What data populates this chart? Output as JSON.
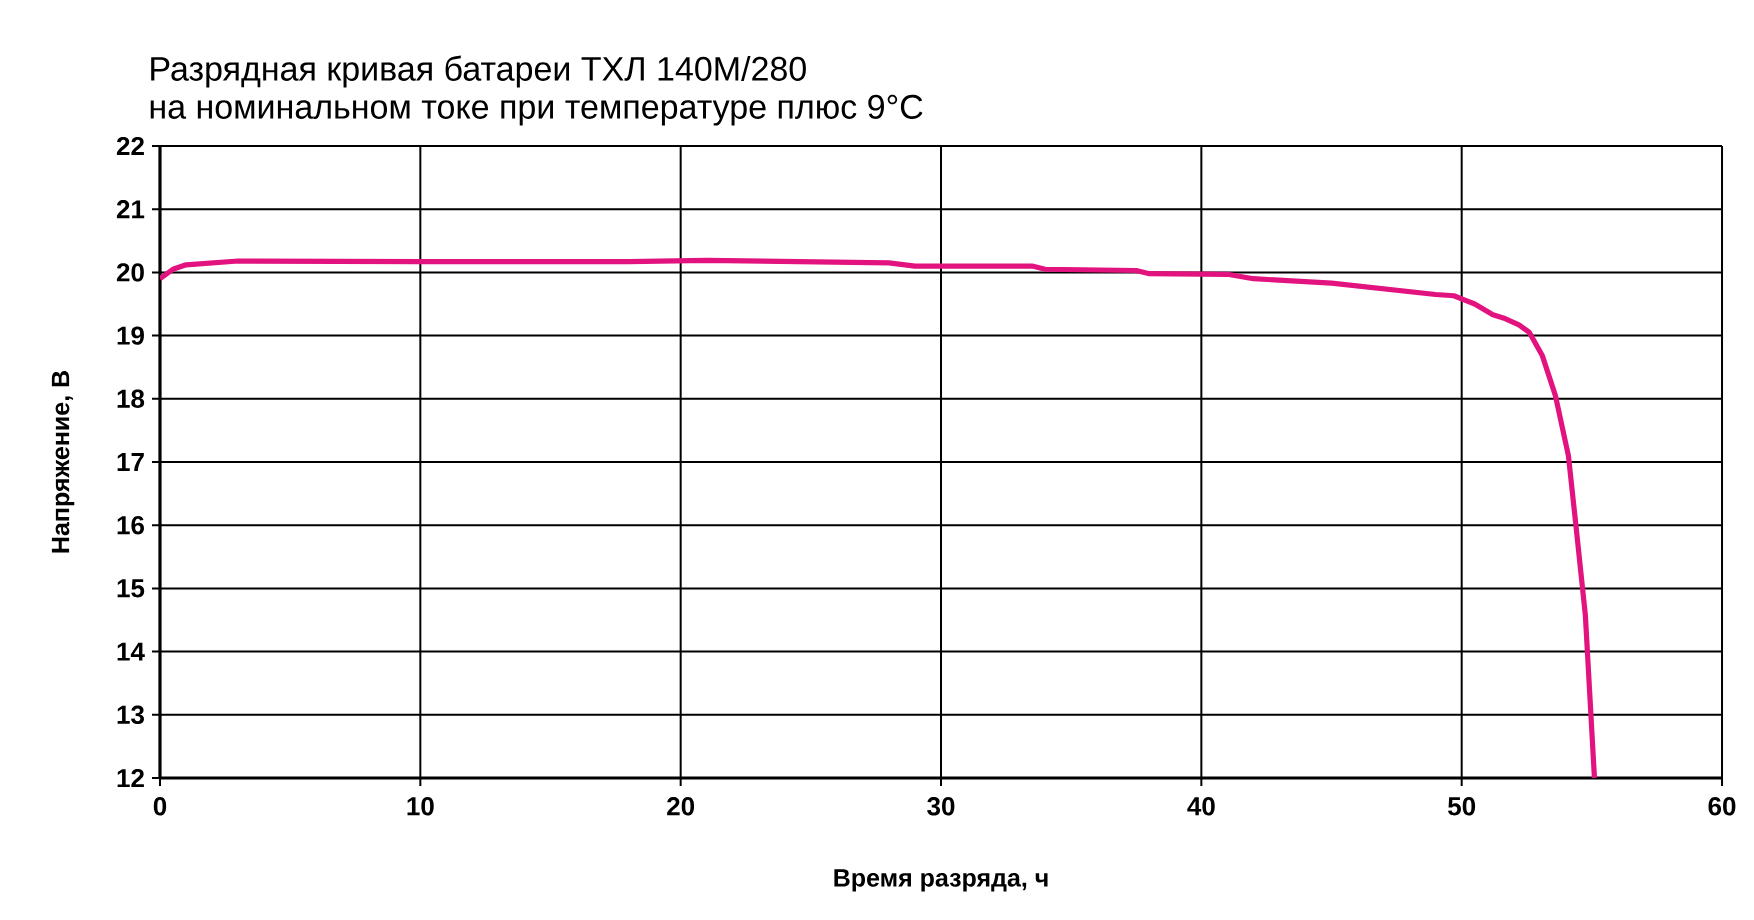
{
  "chart_data": {
    "type": "line",
    "title": "Разрядная кривая батареи ТХЛ 140М/280",
    "subtitle": "на номинальном токе при температуре плюс 9°C",
    "xlabel": "Время разряда, ч",
    "ylabel": "Напряжение, В",
    "xlim": [
      0,
      60
    ],
    "ylim": [
      12,
      22
    ],
    "xticks": [
      0,
      10,
      20,
      30,
      40,
      50,
      60
    ],
    "yticks": [
      12,
      13,
      14,
      15,
      16,
      17,
      18,
      19,
      20,
      21,
      22
    ],
    "grid": true,
    "marker": "none",
    "line_style": "solid",
    "series": [
      {
        "color": "#e2137f",
        "x": [
          0,
          0.5,
          1,
          3,
          10,
          18,
          21,
          28,
          29,
          33.5,
          34,
          37.5,
          38,
          41,
          42,
          45,
          49,
          49.7,
          50,
          50.5,
          51.2,
          51.6,
          52.2,
          52.6,
          53.1,
          53.6,
          54.1,
          54.4,
          54.75,
          55.1
        ],
        "values": [
          19.9,
          20.05,
          20.12,
          20.18,
          20.17,
          20.17,
          20.19,
          20.15,
          20.1,
          20.1,
          20.05,
          20.03,
          19.98,
          19.97,
          19.9,
          19.83,
          19.65,
          19.63,
          19.58,
          19.5,
          19.33,
          19.28,
          19.17,
          19.05,
          18.68,
          18.05,
          17.1,
          15.95,
          14.58,
          12
        ]
      }
    ]
  }
}
